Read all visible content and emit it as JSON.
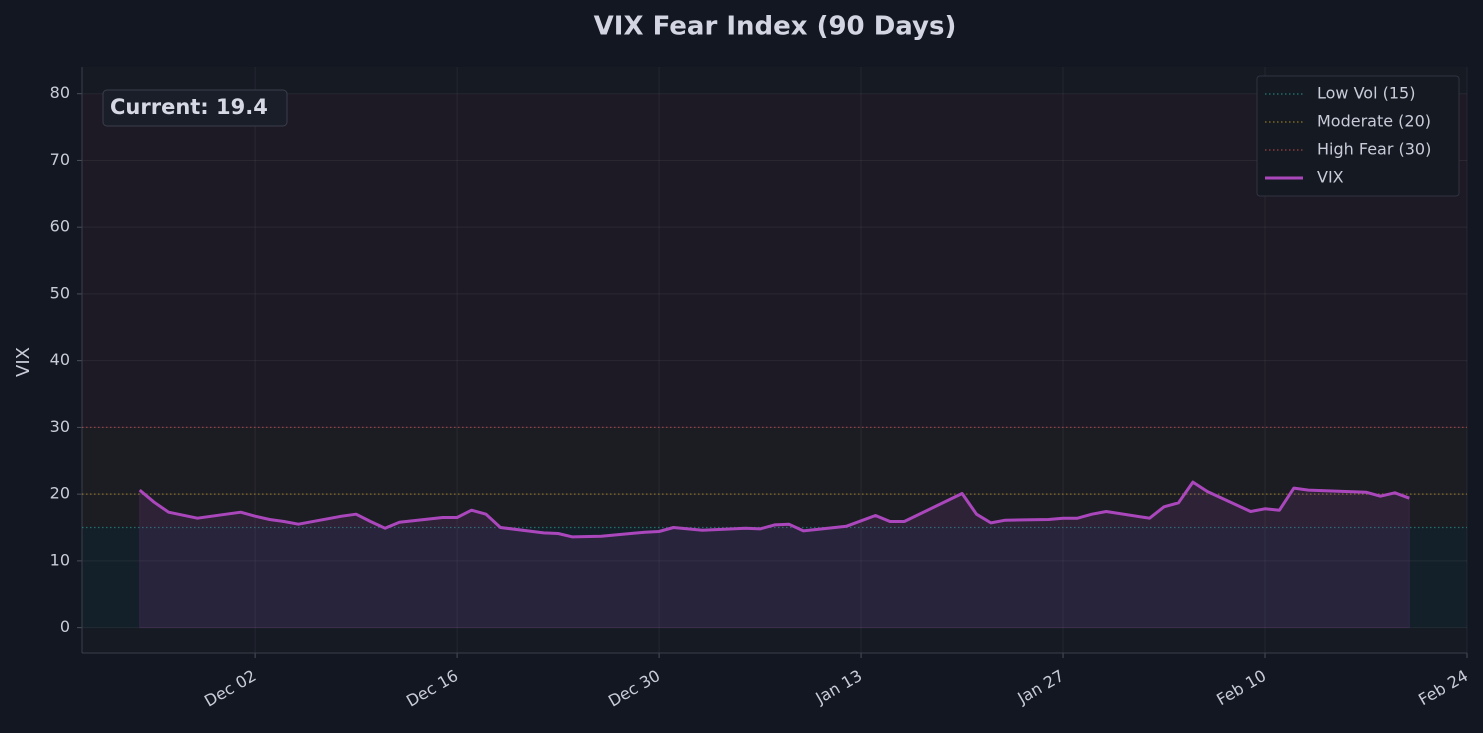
{
  "chart_data": {
    "type": "line",
    "title": "VIX Fear Index (90 Days)",
    "y_label": "VIX",
    "annotation": "Current: 19.4",
    "x": [
      "Nov 24",
      "Nov 25",
      "Nov 26",
      "Nov 28",
      "Dec 01",
      "Dec 02",
      "Dec 03",
      "Dec 04",
      "Dec 05",
      "Dec 08",
      "Dec 09",
      "Dec 10",
      "Dec 11",
      "Dec 12",
      "Dec 15",
      "Dec 16",
      "Dec 17",
      "Dec 18",
      "Dec 19",
      "Dec 22",
      "Dec 23",
      "Dec 24",
      "Dec 26",
      "Dec 29",
      "Dec 30",
      "Dec 31",
      "Jan 02",
      "Jan 05",
      "Jan 06",
      "Jan 07",
      "Jan 08",
      "Jan 09",
      "Jan 12",
      "Jan 13",
      "Jan 14",
      "Jan 15",
      "Jan 16",
      "Jan 20",
      "Jan 21",
      "Jan 22",
      "Jan 23",
      "Jan 26",
      "Jan 27",
      "Jan 28",
      "Jan 29",
      "Jan 30",
      "Feb 02",
      "Feb 03",
      "Feb 04",
      "Feb 05",
      "Feb 06",
      "Feb 09",
      "Feb 10",
      "Feb 11",
      "Feb 12",
      "Feb 13",
      "Feb 17",
      "Feb 18",
      "Feb 19",
      "Feb 20"
    ],
    "series": [
      {
        "name": "VIX",
        "color": "#ab47bc",
        "values": [
          20.6,
          18.8,
          17.3,
          16.4,
          17.3,
          16.7,
          16.2,
          15.9,
          15.5,
          16.7,
          17.0,
          15.9,
          14.9,
          15.8,
          16.5,
          16.5,
          17.6,
          17.0,
          15.0,
          14.2,
          14.1,
          13.6,
          13.7,
          14.3,
          14.4,
          15.0,
          14.6,
          14.9,
          14.8,
          15.4,
          15.5,
          14.5,
          15.2,
          16.0,
          16.8,
          15.9,
          15.9,
          20.1,
          17.0,
          15.7,
          16.1,
          16.2,
          16.4,
          16.4,
          17.0,
          17.4,
          16.4,
          18.1,
          18.7,
          21.8,
          20.4,
          17.4,
          17.8,
          17.6,
          20.9,
          20.6,
          20.3,
          19.7,
          20.2,
          19.4
        ]
      }
    ],
    "thresholds": [
      {
        "name": "Low Vol (15)",
        "value": 15,
        "color": "#26a69a"
      },
      {
        "name": "Moderate (20)",
        "value": 20,
        "color": "#c9a227"
      },
      {
        "name": "High Fear (30)",
        "value": 30,
        "color": "#d9534f"
      }
    ],
    "zones": [
      {
        "range": [
          0,
          15
        ],
        "color": "#142029"
      },
      {
        "range": [
          15,
          30
        ],
        "color": "#1c1d23"
      },
      {
        "range": [
          30,
          80
        ],
        "color": "#1d1a25"
      }
    ],
    "xlim": [
      "Nov 20",
      "Feb 24"
    ],
    "xticks": [
      "Dec 02",
      "Dec 16",
      "Dec 30",
      "Jan 13",
      "Jan 27",
      "Feb 10",
      "Feb 24"
    ],
    "ylim": [
      -3.8,
      84
    ],
    "yticks": [
      0,
      10,
      20,
      30,
      40,
      50,
      60,
      70,
      80
    ],
    "grid": true,
    "legend": "upper right"
  }
}
